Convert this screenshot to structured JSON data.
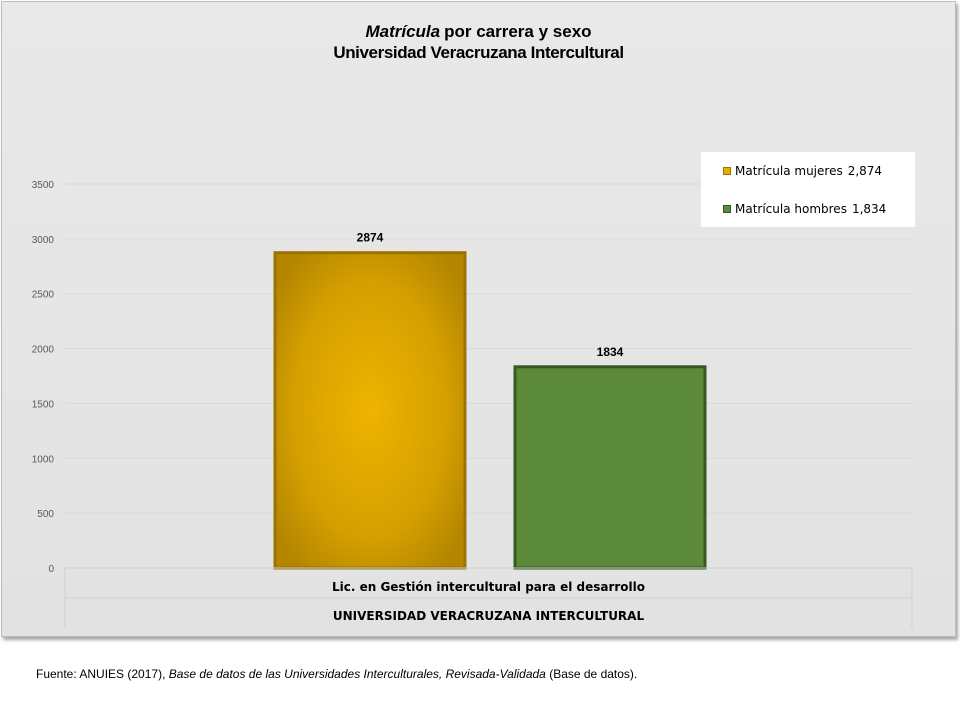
{
  "chart_data": {
    "type": "bar",
    "title": {
      "italic": "Matrícula",
      "rest": "por carrera y sexo",
      "line2": "Universidad Veracruzana Intercultural"
    },
    "categories": [
      "Lic. en Gestión intercultural para el desarrollo"
    ],
    "group_label": "UNIVERSIDAD VERACRUZANA INTERCULTURAL",
    "series": [
      {
        "name": "Matrícula mujeres",
        "legend_value": "2,874",
        "values": [
          2874
        ],
        "data_label": "2874",
        "color": "#e5ad00",
        "edge": "#9a7400"
      },
      {
        "name": "Matrícula hombres",
        "legend_value": "1,834",
        "values": [
          1834
        ],
        "data_label": "1834",
        "color": "#5a8a3a",
        "edge": "#355a20"
      }
    ],
    "ylim": [
      0,
      3500
    ],
    "yticks": [
      "0",
      "500",
      "1000",
      "1500",
      "2000",
      "2500",
      "3000",
      "3500"
    ],
    "grid": true,
    "legend_position": "top-right"
  },
  "source": {
    "prefix": "Fuente: ANUIES (2017),",
    "title": "Base de datos de las Universidades  Interculturales, Revisada-Validada",
    "suffix": "(Base de datos)."
  }
}
